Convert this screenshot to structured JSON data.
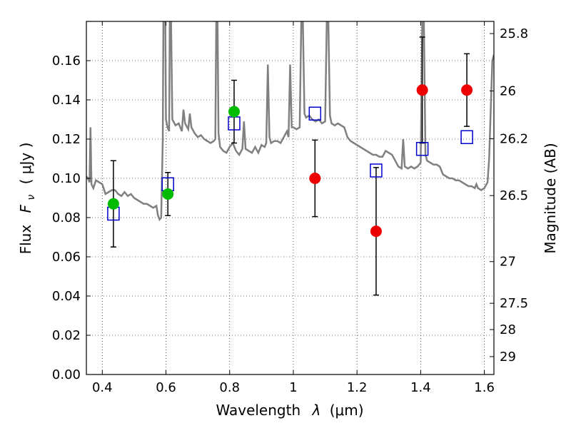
{
  "chart_data": {
    "type": "scatter",
    "xlabel_text": "Wavelength",
    "xlabel_symbol": "λ",
    "xlabel_unit": "(μm)",
    "ylabel_text": "Flux",
    "ylabel_symbol": "F",
    "ylabel_sub": "ν",
    "ylabel_unit": "( μJy )",
    "y2label": "Magnitude (AB)",
    "xlim": [
      0.35,
      1.63
    ],
    "ylim": [
      0.0,
      0.18
    ],
    "xticks": [
      {
        "v": 0.4,
        "label": "0.4"
      },
      {
        "v": 0.6,
        "label": "0.6"
      },
      {
        "v": 0.8,
        "label": "0.8"
      },
      {
        "v": 1.0,
        "label": "1"
      },
      {
        "v": 1.2,
        "label": "1.2"
      },
      {
        "v": 1.4,
        "label": "1.4"
      },
      {
        "v": 1.6,
        "label": "1.6"
      }
    ],
    "yticks": [
      {
        "v": 0.0,
        "label": "0.00"
      },
      {
        "v": 0.02,
        "label": "0.02"
      },
      {
        "v": 0.04,
        "label": "0.04"
      },
      {
        "v": 0.06,
        "label": "0.06"
      },
      {
        "v": 0.08,
        "label": "0.08"
      },
      {
        "v": 0.1,
        "label": "0.10"
      },
      {
        "v": 0.12,
        "label": "0.12"
      },
      {
        "v": 0.14,
        "label": "0.14"
      },
      {
        "v": 0.16,
        "label": "0.16"
      }
    ],
    "y2ticks": [
      {
        "mag": 25.8,
        "label": "25.8"
      },
      {
        "mag": 26,
        "label": "26"
      },
      {
        "mag": 26.2,
        "label": "26.2"
      },
      {
        "mag": 26.5,
        "label": "26.5"
      },
      {
        "mag": 27,
        "label": "27"
      },
      {
        "mag": 27.5,
        "label": "27.5"
      },
      {
        "mag": 28,
        "label": "28"
      },
      {
        "mag": 29,
        "label": "29"
      }
    ],
    "grid": true,
    "series": [
      {
        "kind": "line",
        "color": "#808080",
        "points": [
          [
            0.35,
            0.101
          ],
          [
            0.355,
            0.1
          ],
          [
            0.36,
            0.098
          ],
          [
            0.363,
            0.126
          ],
          [
            0.366,
            0.097
          ],
          [
            0.372,
            0.095
          ],
          [
            0.38,
            0.099
          ],
          [
            0.39,
            0.098
          ],
          [
            0.4,
            0.097
          ],
          [
            0.41,
            0.092
          ],
          [
            0.42,
            0.093
          ],
          [
            0.43,
            0.094
          ],
          [
            0.44,
            0.094
          ],
          [
            0.45,
            0.092
          ],
          [
            0.46,
            0.091
          ],
          [
            0.47,
            0.093
          ],
          [
            0.48,
            0.091
          ],
          [
            0.49,
            0.092
          ],
          [
            0.5,
            0.09
          ],
          [
            0.51,
            0.089
          ],
          [
            0.52,
            0.088
          ],
          [
            0.53,
            0.087
          ],
          [
            0.54,
            0.087
          ],
          [
            0.55,
            0.086
          ],
          [
            0.56,
            0.085
          ],
          [
            0.57,
            0.086
          ],
          [
            0.575,
            0.081
          ],
          [
            0.58,
            0.079
          ],
          [
            0.585,
            0.08
          ],
          [
            0.59,
            0.12
          ],
          [
            0.592,
            0.18
          ],
          [
            0.598,
            0.18
          ],
          [
            0.6,
            0.13
          ],
          [
            0.605,
            0.126
          ],
          [
            0.61,
            0.124
          ],
          [
            0.612,
            0.18
          ],
          [
            0.616,
            0.18
          ],
          [
            0.62,
            0.13
          ],
          [
            0.63,
            0.127
          ],
          [
            0.64,
            0.128
          ],
          [
            0.65,
            0.124
          ],
          [
            0.655,
            0.135
          ],
          [
            0.66,
            0.128
          ],
          [
            0.67,
            0.125
          ],
          [
            0.675,
            0.133
          ],
          [
            0.68,
            0.126
          ],
          [
            0.69,
            0.123
          ],
          [
            0.7,
            0.121
          ],
          [
            0.71,
            0.122
          ],
          [
            0.72,
            0.12
          ],
          [
            0.73,
            0.119
          ],
          [
            0.74,
            0.118
          ],
          [
            0.75,
            0.119
          ],
          [
            0.755,
            0.12
          ],
          [
            0.758,
            0.18
          ],
          [
            0.762,
            0.18
          ],
          [
            0.765,
            0.123
          ],
          [
            0.77,
            0.116
          ],
          [
            0.78,
            0.114
          ],
          [
            0.79,
            0.113
          ],
          [
            0.8,
            0.116
          ],
          [
            0.81,
            0.118
          ],
          [
            0.82,
            0.114
          ],
          [
            0.83,
            0.112
          ],
          [
            0.84,
            0.115
          ],
          [
            0.845,
            0.129
          ],
          [
            0.85,
            0.115
          ],
          [
            0.86,
            0.114
          ],
          [
            0.87,
            0.113
          ],
          [
            0.88,
            0.116
          ],
          [
            0.89,
            0.113
          ],
          [
            0.9,
            0.117
          ],
          [
            0.91,
            0.116
          ],
          [
            0.915,
            0.118
          ],
          [
            0.92,
            0.158
          ],
          [
            0.925,
            0.121
          ],
          [
            0.93,
            0.118
          ],
          [
            0.94,
            0.119
          ],
          [
            0.95,
            0.119
          ],
          [
            0.96,
            0.118
          ],
          [
            0.97,
            0.121
          ],
          [
            0.98,
            0.124
          ],
          [
            0.985,
            0.121
          ],
          [
            0.99,
            0.158
          ],
          [
            0.995,
            0.126
          ],
          [
            1.0,
            0.126
          ],
          [
            1.01,
            0.125
          ],
          [
            1.02,
            0.126
          ],
          [
            1.025,
            0.18
          ],
          [
            1.03,
            0.18
          ],
          [
            1.035,
            0.133
          ],
          [
            1.04,
            0.131
          ],
          [
            1.05,
            0.132
          ],
          [
            1.06,
            0.13
          ],
          [
            1.07,
            0.129
          ],
          [
            1.08,
            0.13
          ],
          [
            1.09,
            0.128
          ],
          [
            1.1,
            0.129
          ],
          [
            1.105,
            0.18
          ],
          [
            1.11,
            0.18
          ],
          [
            1.115,
            0.132
          ],
          [
            1.12,
            0.128
          ],
          [
            1.13,
            0.127
          ],
          [
            1.14,
            0.128
          ],
          [
            1.15,
            0.127
          ],
          [
            1.16,
            0.126
          ],
          [
            1.17,
            0.121
          ],
          [
            1.18,
            0.119
          ],
          [
            1.19,
            0.118
          ],
          [
            1.2,
            0.117
          ],
          [
            1.21,
            0.116
          ],
          [
            1.22,
            0.115
          ],
          [
            1.23,
            0.114
          ],
          [
            1.24,
            0.113
          ],
          [
            1.25,
            0.112
          ],
          [
            1.26,
            0.112
          ],
          [
            1.27,
            0.111
          ],
          [
            1.28,
            0.111
          ],
          [
            1.29,
            0.114
          ],
          [
            1.3,
            0.113
          ],
          [
            1.31,
            0.112
          ],
          [
            1.32,
            0.109
          ],
          [
            1.33,
            0.106
          ],
          [
            1.34,
            0.105
          ],
          [
            1.345,
            0.12
          ],
          [
            1.35,
            0.106
          ],
          [
            1.36,
            0.105
          ],
          [
            1.37,
            0.106
          ],
          [
            1.38,
            0.105
          ],
          [
            1.39,
            0.106
          ],
          [
            1.4,
            0.108
          ],
          [
            1.405,
            0.18
          ],
          [
            1.41,
            0.18
          ],
          [
            1.415,
            0.112
          ],
          [
            1.42,
            0.109
          ],
          [
            1.43,
            0.108
          ],
          [
            1.44,
            0.107
          ],
          [
            1.45,
            0.107
          ],
          [
            1.46,
            0.106
          ],
          [
            1.47,
            0.102
          ],
          [
            1.48,
            0.101
          ],
          [
            1.49,
            0.1
          ],
          [
            1.5,
            0.1
          ],
          [
            1.51,
            0.099
          ],
          [
            1.52,
            0.099
          ],
          [
            1.53,
            0.098
          ],
          [
            1.54,
            0.097
          ],
          [
            1.55,
            0.096
          ],
          [
            1.56,
            0.096
          ],
          [
            1.57,
            0.095
          ],
          [
            1.575,
            0.097
          ],
          [
            1.58,
            0.095
          ],
          [
            1.59,
            0.094
          ],
          [
            1.6,
            0.095
          ],
          [
            1.61,
            0.098
          ],
          [
            1.615,
            0.11
          ],
          [
            1.62,
            0.135
          ],
          [
            1.625,
            0.16
          ],
          [
            1.63,
            0.163
          ]
        ]
      },
      {
        "name": "",
        "kind": "errorbar",
        "color": "#00bb00",
        "marker": "circle",
        "points": [
          {
            "x": 0.435,
            "y": 0.087,
            "err": 0.022
          },
          {
            "x": 0.606,
            "y": 0.092,
            "err": 0.011
          },
          {
            "x": 0.814,
            "y": 0.134,
            "err": 0.016
          }
        ]
      },
      {
        "name": "",
        "kind": "errorbar",
        "color": "#ee0000",
        "marker": "circle",
        "points": [
          {
            "x": 1.068,
            "y": 0.1,
            "err": 0.0195
          },
          {
            "x": 1.26,
            "y": 0.073,
            "err": 0.0325
          },
          {
            "x": 1.405,
            "y": 0.145,
            "err": 0.027
          },
          {
            "x": 1.545,
            "y": 0.145,
            "err": 0.0185
          }
        ]
      },
      {
        "name": "",
        "kind": "scatter",
        "color": "#0000cc",
        "marker": "open-square",
        "points": [
          {
            "x": 0.435,
            "y": 0.082
          },
          {
            "x": 0.606,
            "y": 0.097
          },
          {
            "x": 0.814,
            "y": 0.128
          },
          {
            "x": 1.068,
            "y": 0.133
          },
          {
            "x": 1.26,
            "y": 0.104
          },
          {
            "x": 1.405,
            "y": 0.115
          },
          {
            "x": 1.545,
            "y": 0.121
          }
        ]
      }
    ]
  }
}
